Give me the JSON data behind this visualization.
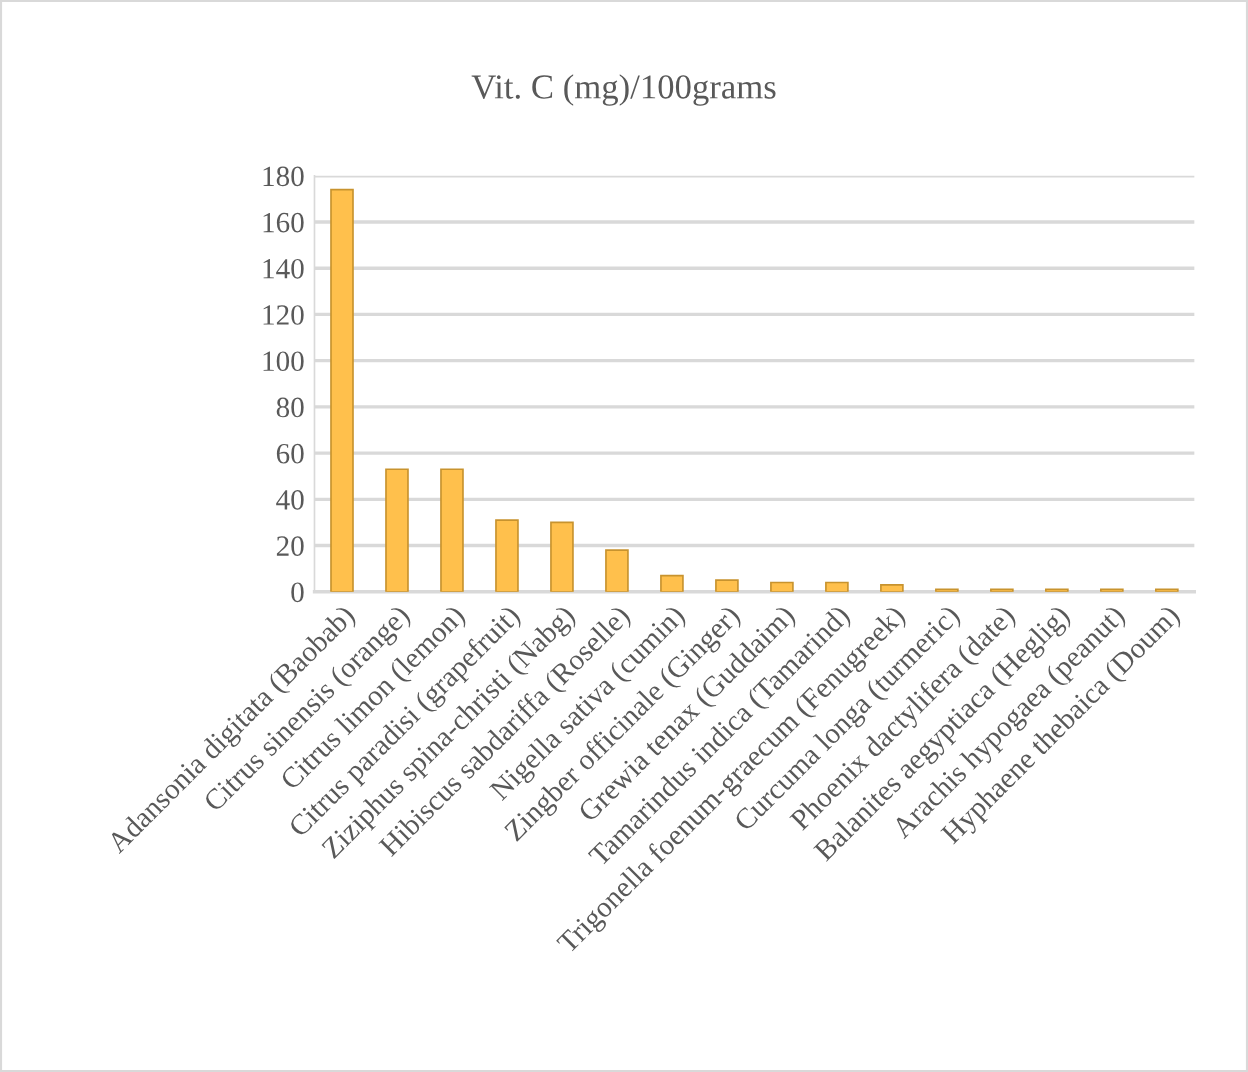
{
  "chart_data": {
    "type": "bar",
    "title": "Vit. C (mg)/100grams",
    "categories": [
      "Adansonia digitata (Baobab)",
      "Citrus sinensis (orange)",
      "Citrus limon (lemon)",
      "Citrus paradisi (grapefruit)",
      "Ziziphus spina-christi (Nabg)",
      "Hibiscus sabdariffa (Roselle)",
      "Nigella sativa (cumin)",
      "Zingber officinale (Ginger)",
      "Grewia tenax (Guddaim)",
      "Tamarindus indica (Tamarind)",
      "Trigonella foenum-graecum (Fenugreek)",
      "Curcuma longa (turmeric)",
      "Phoenix dactylifera (date)",
      "Balanites aegyptiaca (Heglig)",
      "Arachis hypogaea (peanut)",
      "Hyphaene thebaica (Doum)"
    ],
    "values": [
      174,
      53,
      53,
      31,
      30,
      18,
      7,
      5,
      4,
      4,
      3,
      1,
      1,
      1,
      1,
      1
    ],
    "color": "#ffc04c",
    "ylim": [
      0,
      180
    ],
    "yticks": [
      0,
      20,
      40,
      60,
      80,
      100,
      120,
      140,
      160,
      180
    ],
    "grid": "y",
    "legend": false
  }
}
